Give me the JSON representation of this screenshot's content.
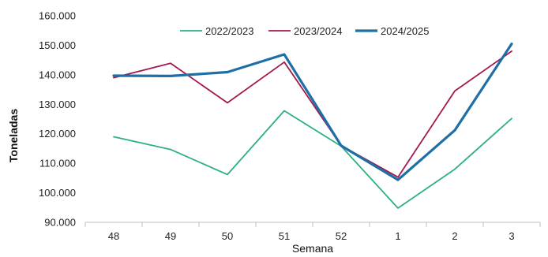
{
  "chart_data": {
    "type": "line",
    "xlabel": "Semana",
    "ylabel": "Toneladas",
    "categories": [
      "48",
      "49",
      "50",
      "51",
      "52",
      "1",
      "2",
      "3"
    ],
    "ylim": [
      90000,
      160000
    ],
    "yticks": [
      "90.000",
      "100.000",
      "110.000",
      "120.000",
      "130.000",
      "140.000",
      "150.000",
      "160.000"
    ],
    "ytick_values": [
      90000,
      100000,
      110000,
      120000,
      130000,
      140000,
      150000,
      160000
    ],
    "grid": false,
    "legend_position": "top",
    "series": [
      {
        "name": "2022/2023",
        "color": "#2db084",
        "values": [
          119000,
          114700,
          106200,
          127800,
          115800,
          94800,
          108000,
          125200
        ]
      },
      {
        "name": "2023/2024",
        "color": "#a3184f",
        "values": [
          139000,
          143900,
          130500,
          144300,
          116000,
          105300,
          134500,
          148000
        ]
      },
      {
        "name": "2024/2025",
        "color": "#1e6fa5",
        "values": [
          139700,
          139600,
          140900,
          146900,
          116000,
          104400,
          121200,
          150500
        ]
      }
    ]
  }
}
